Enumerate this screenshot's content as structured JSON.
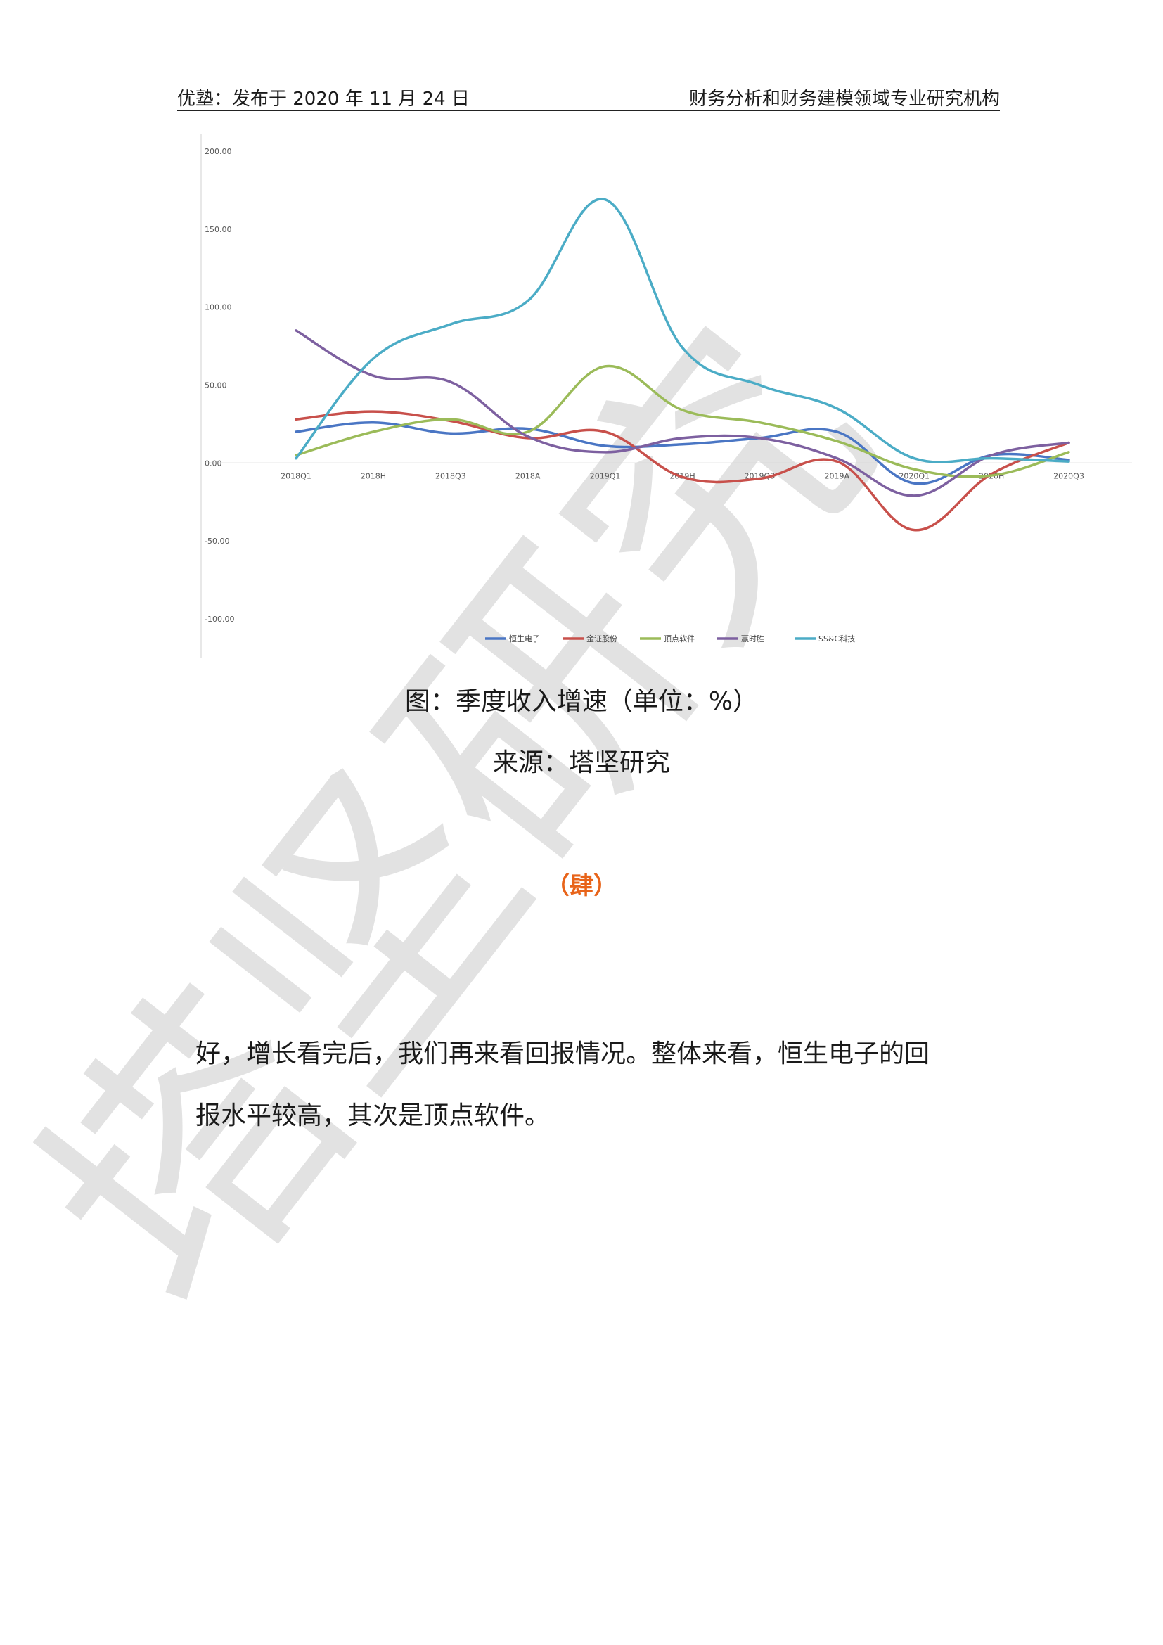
{
  "header": {
    "left": "优塾：发布于 2020 年 11 月 24 日",
    "right": "财务分析和财务建模领域专业研究机构"
  },
  "chart_data": {
    "type": "line",
    "categories": [
      "2018Q1",
      "2018H",
      "2018Q3",
      "2018A",
      "2019Q1",
      "2019H",
      "2019Q3",
      "2019A",
      "2020Q1",
      "2020H",
      "2020Q3"
    ],
    "ylim": [
      -100,
      200
    ],
    "yticks": [
      "200.00",
      "150.00",
      "100.00",
      "50.00",
      "0.00",
      "-50.00",
      "-100.00"
    ],
    "ytick_values": [
      200,
      150,
      100,
      50,
      0,
      -50,
      -100
    ],
    "legend_position": "bottom",
    "series": [
      {
        "name": "恒生电子",
        "color": "#4a76c4",
        "values": [
          20,
          26,
          19,
          22,
          11,
          12,
          16,
          20,
          -13,
          5,
          2
        ]
      },
      {
        "name": "金证股份",
        "color": "#c8504b",
        "values": [
          28,
          33,
          27,
          16,
          20,
          -9,
          -10,
          1,
          -43,
          -7,
          13
        ]
      },
      {
        "name": "顶点软件",
        "color": "#9bbb59",
        "values": [
          5,
          20,
          28,
          20,
          62,
          34,
          26,
          14,
          -4,
          -8,
          7
        ]
      },
      {
        "name": "赢时胜",
        "color": "#7d60a0",
        "values": [
          85,
          56,
          52,
          17,
          7,
          16,
          16,
          3,
          -21,
          5,
          13
        ]
      },
      {
        "name": "SS&C科技",
        "color": "#4bacc6",
        "values": [
          3,
          67,
          89,
          104,
          169,
          74,
          50,
          35,
          3,
          3,
          1
        ]
      }
    ]
  },
  "caption": {
    "title": "图：季度收入增速（单位：%）",
    "source": "来源：塔坚研究"
  },
  "section": {
    "mark": "（肆）"
  },
  "body": {
    "line1": "好，增长看完后，我们再来看回报情况。整体来看，恒生电子的回",
    "line2": "报水平较高，其次是顶点软件。"
  },
  "watermark": {
    "text": "塔坚研究",
    "color": "#d9d9d9"
  }
}
